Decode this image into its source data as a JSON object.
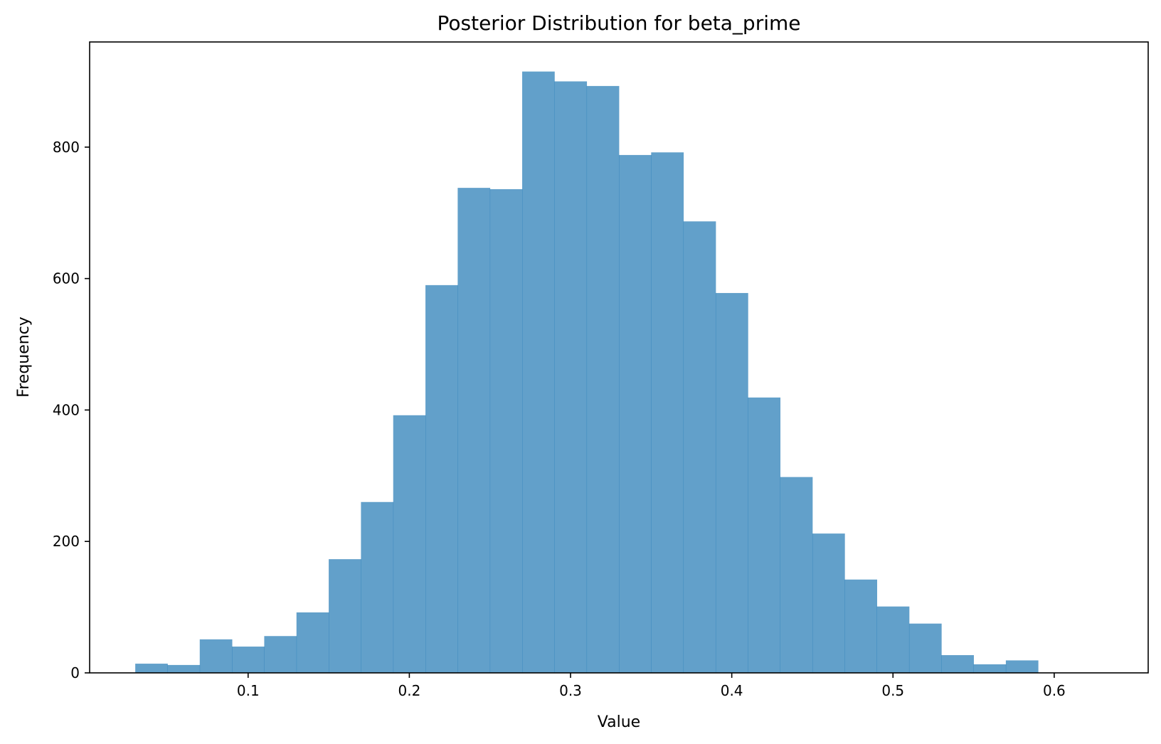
{
  "chart_data": {
    "type": "bar",
    "title": "Posterior Distribution for beta_prime",
    "xlabel": "Value",
    "ylabel": "Frequency",
    "bar_color": "#1f77b4",
    "bar_opacity": 0.7,
    "xlim": [
      0.0017,
      0.6583
    ],
    "ylim": [
      0,
      960
    ],
    "xticks": [
      0.1,
      0.2,
      0.3,
      0.4,
      0.5,
      0.6
    ],
    "xtick_labels": [
      "0.1",
      "0.2",
      "0.3",
      "0.4",
      "0.5",
      "0.6"
    ],
    "yticks": [
      0,
      200,
      400,
      600,
      800
    ],
    "ytick_labels": [
      "0",
      "200",
      "400",
      "600",
      "800"
    ],
    "bin_edges": [
      0.03,
      0.05,
      0.07,
      0.09,
      0.11,
      0.13,
      0.15,
      0.17,
      0.19,
      0.21,
      0.23,
      0.25,
      0.27,
      0.29,
      0.31,
      0.33,
      0.35,
      0.37,
      0.39,
      0.41,
      0.43,
      0.45,
      0.47,
      0.49,
      0.51,
      0.53,
      0.55,
      0.57,
      0.59
    ],
    "values": [
      14,
      12,
      51,
      40,
      56,
      92,
      173,
      260,
      392,
      590,
      738,
      736,
      915,
      900,
      893,
      788,
      792,
      687,
      578,
      419,
      298,
      212,
      142,
      101,
      75,
      27,
      13,
      19
    ],
    "grid": false,
    "legend": false
  }
}
